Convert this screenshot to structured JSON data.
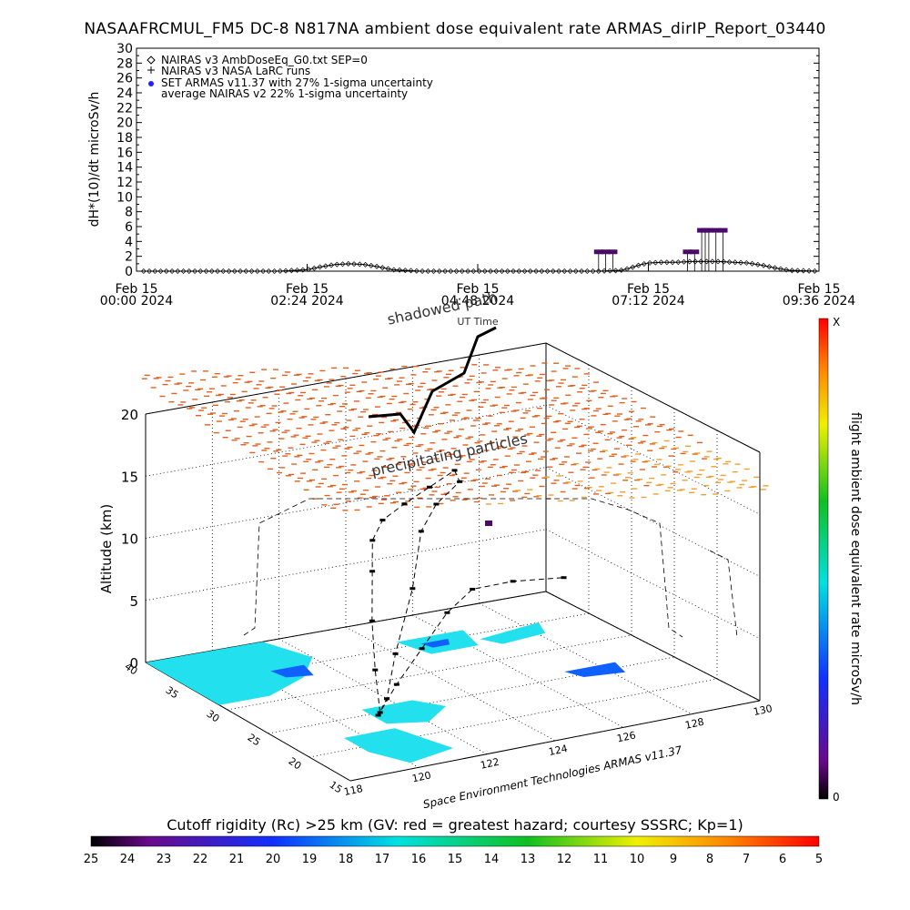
{
  "title": "NASAAFRCMUL_FM5 DC-8   N817NA ambient dose equivalent rate ARMAS_dirIP_Report_03440",
  "top_chart": {
    "ylabel": "dH*(10)/dt microSv/h",
    "legend": [
      {
        "symbol": "diamond",
        "label": "NAIRAS v3 AmbDoseEq_G0.txt SEP=0"
      },
      {
        "symbol": "plus",
        "label": "NAIRAS v3 NASA LaRC runs"
      },
      {
        "symbol": "dot",
        "label": "SET ARMAS v11.37 with 27% 1-sigma uncertainty"
      },
      {
        "symbol": "none",
        "label": "average NAIRAS v2 22% 1-sigma uncertainty"
      }
    ],
    "xticks": [
      {
        "line1": "Feb 15",
        "line2": "00:00 2024"
      },
      {
        "line1": "Feb 15",
        "line2": "02:24 2024"
      },
      {
        "line1": "Feb 15",
        "line2": "04:48 2024"
      },
      {
        "line1": "Feb 15",
        "line2": "07:12 2024"
      },
      {
        "line1": "Feb 15",
        "line2": "09:36 2024"
      }
    ]
  },
  "chart_data": [
    {
      "type": "line",
      "ylabel": "dH*(10)/dt microSv/h",
      "xlim_hours": [
        0,
        9.6
      ],
      "ylim": [
        0,
        30
      ],
      "yticks": [
        0,
        2,
        4,
        6,
        8,
        10,
        12,
        14,
        16,
        18,
        20,
        22,
        24,
        26,
        28,
        30
      ],
      "series": [
        {
          "name": "NAIRAS v3 AmbDoseEq_G0.txt SEP=0",
          "x": [
            0,
            0.5,
            1,
            1.5,
            2,
            2.4,
            2.6,
            2.8,
            3.0,
            3.2,
            3.4,
            3.6,
            4,
            4.5,
            5,
            5.5,
            6,
            6.5,
            6.8,
            6.9,
            7.0,
            7.1,
            7.2,
            7.4,
            7.6,
            7.8,
            8.0,
            8.2,
            8.4,
            8.6,
            8.8,
            9.0,
            9.2,
            9.6
          ],
          "y": [
            0,
            0,
            0,
            0,
            0,
            0.2,
            0.6,
            0.9,
            1.0,
            0.9,
            0.6,
            0.2,
            0,
            0,
            0,
            0,
            0,
            0,
            0.1,
            0.3,
            0.6,
            0.9,
            1.1,
            1.2,
            1.2,
            1.3,
            1.3,
            1.3,
            1.2,
            1.1,
            0.8,
            0.4,
            0.1,
            0
          ]
        },
        {
          "name": "SET ARMAS v11.37 with 27% 1-sigma uncertainty",
          "x": [
            6.5,
            6.6,
            6.7,
            7.75,
            7.85,
            7.95,
            8.0,
            8.05,
            8.15,
            8.25
          ],
          "y": [
            2.6,
            2.6,
            2.6,
            2.6,
            2.6,
            5.5,
            5.5,
            5.5,
            5.5,
            5.5
          ]
        }
      ]
    },
    {
      "type": "scatter",
      "title": "shadowed path",
      "subtitle": "UT Time",
      "zlabel": "Altitude (km)",
      "zticks": [
        0,
        5,
        10,
        15,
        20
      ],
      "yticks": [
        40,
        35,
        30,
        25,
        20,
        15
      ],
      "xticks": [
        118,
        120,
        122,
        124,
        126,
        128,
        130
      ],
      "annotation": "precipitating particles",
      "footer": "Space Environment Technologies ARMAS v11.37",
      "colorbar_label": "flight ambient dose equivalent rate microSv/h",
      "colorbar_top": "X",
      "colorbar_bottom": "0"
    }
  ],
  "bottom_bar": {
    "label": "Cutoff rigidity (Rc) >25 km (GV: red = greatest hazard; courtesy SSSRC; Kp=1)",
    "ticks": [
      "25",
      "24",
      "23",
      "22",
      "21",
      "20",
      "19",
      "18",
      "17",
      "16",
      "15",
      "14",
      "13",
      "12",
      "11",
      "10",
      "9",
      "8",
      "7",
      "6",
      "5"
    ]
  }
}
